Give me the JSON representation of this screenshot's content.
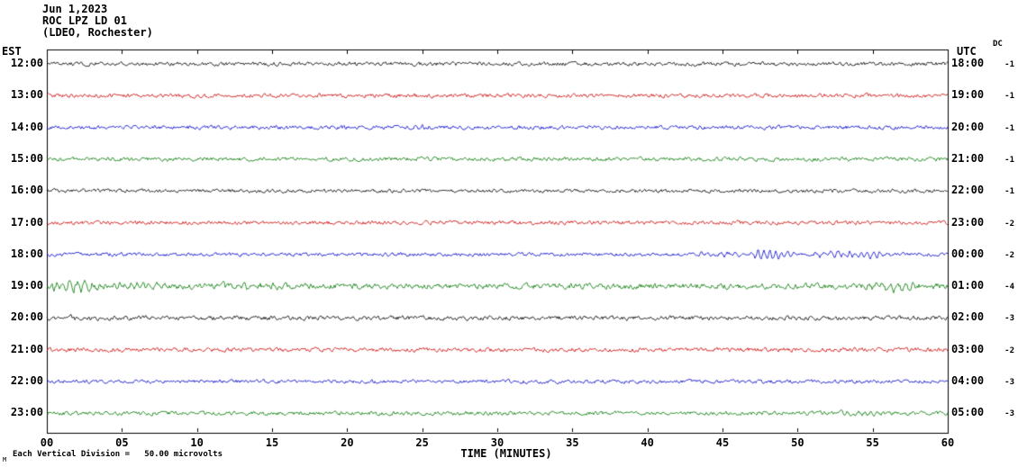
{
  "header": {
    "date": "Jun 1,2023",
    "station": "ROC LPZ LD 01",
    "location": "(LDEO, Rochester)"
  },
  "axes": {
    "left_label": "EST",
    "right_label": "UTC",
    "dc_label": "DC",
    "x_title": "TIME (MINUTES)",
    "x_ticks": [
      "00",
      "05",
      "10",
      "15",
      "20",
      "25",
      "30",
      "35",
      "40",
      "45",
      "50",
      "55",
      "60"
    ]
  },
  "footer": {
    "scale_note": "Each Vertical Division =   50.00 microvolts",
    "corner_mark": "M"
  },
  "chart_data": {
    "type": "line",
    "title": "ROC LPZ LD 01 helicorder, Jun 1,2023 (LDEO, Rochester)",
    "x_range_minutes": [
      0,
      60
    ],
    "x_tick_interval_minutes": 5,
    "microvolts_per_division": 50.0,
    "colors": {
      "black": "#000000",
      "red": "#cc0000",
      "blue": "#0000cc",
      "green": "#007700"
    },
    "rows": [
      {
        "est": "12:00",
        "utc": "18:00",
        "dc": "-1",
        "color": "black",
        "base_amp": 1.3,
        "events": []
      },
      {
        "est": "13:00",
        "utc": "19:00",
        "dc": "-1",
        "color": "red",
        "base_amp": 1.3,
        "events": []
      },
      {
        "est": "14:00",
        "utc": "20:00",
        "dc": "-1",
        "color": "blue",
        "base_amp": 1.3,
        "events": [
          {
            "start_min": 24,
            "end_min": 26,
            "amp": 1.2
          }
        ]
      },
      {
        "est": "15:00",
        "utc": "21:00",
        "dc": "-1",
        "color": "green",
        "base_amp": 1.3,
        "events": []
      },
      {
        "est": "16:00",
        "utc": "22:00",
        "dc": "-1",
        "color": "black",
        "base_amp": 1.2,
        "events": []
      },
      {
        "est": "17:00",
        "utc": "23:00",
        "dc": "-2",
        "color": "red",
        "base_amp": 1.3,
        "events": []
      },
      {
        "est": "18:00",
        "utc": "00:00",
        "dc": "-2",
        "color": "blue",
        "base_amp": 1.2,
        "events": [
          {
            "start_min": 43,
            "end_min": 46.5,
            "amp": 2.5
          },
          {
            "start_min": 46.5,
            "end_min": 50,
            "amp": 6.5
          },
          {
            "start_min": 50.5,
            "end_min": 56.5,
            "amp": 3.5
          }
        ]
      },
      {
        "est": "19:00",
        "utc": "01:00",
        "dc": "-4",
        "color": "green",
        "base_amp": 1.8,
        "events": [
          {
            "start_min": 0,
            "end_min": 4,
            "amp": 6
          },
          {
            "start_min": 4,
            "end_min": 9,
            "amp": 4
          },
          {
            "start_min": 9,
            "end_min": 16,
            "amp": 2.2
          },
          {
            "start_min": 54,
            "end_min": 58.5,
            "amp": 4.5
          },
          {
            "start_min": 58.5,
            "end_min": 60,
            "amp": 2.5
          }
        ]
      },
      {
        "est": "20:00",
        "utc": "02:00",
        "dc": "-3",
        "color": "black",
        "base_amp": 1.4,
        "events": [
          {
            "start_min": 0,
            "end_min": 4,
            "amp": 1.5
          }
        ]
      },
      {
        "est": "21:00",
        "utc": "03:00",
        "dc": "-2",
        "color": "red",
        "base_amp": 1.4,
        "events": []
      },
      {
        "est": "22:00",
        "utc": "04:00",
        "dc": "-3",
        "color": "blue",
        "base_amp": 1.2,
        "events": []
      },
      {
        "est": "23:00",
        "utc": "05:00",
        "dc": "-3",
        "color": "green",
        "base_amp": 1.3,
        "events": [
          {
            "start_min": 52.5,
            "end_min": 56,
            "amp": 1.8
          }
        ]
      }
    ]
  }
}
